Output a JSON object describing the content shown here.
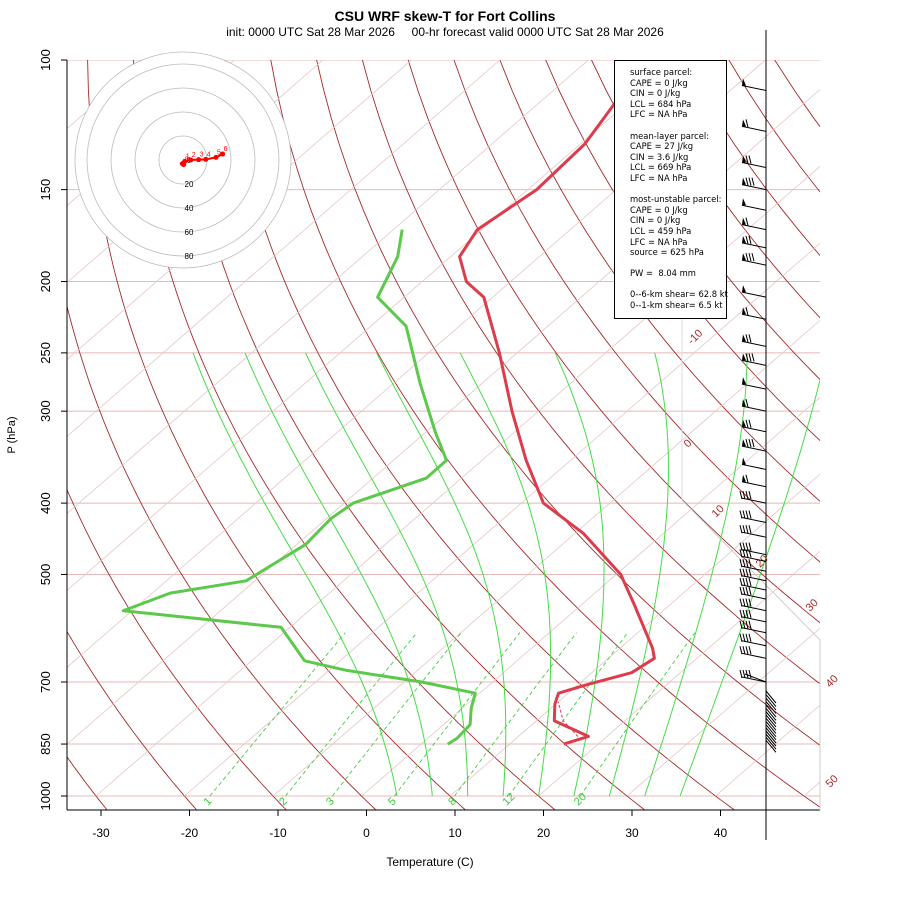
{
  "title": "CSU WRF skew-T for Fort Collins",
  "subtitle": "init: 0000 UTC Sat 28 Mar 2026     00-hr forecast valid 0000 UTC Sat 28 Mar 2026",
  "chart_data": {
    "type": "line",
    "title": "CSU WRF skew-T for Fort Collins",
    "xlabel": "Temperature (C)",
    "ylabel": "P (hPa)",
    "x_ticks": [
      "-30",
      "-20",
      "-10",
      "0",
      "10",
      "20",
      "30",
      "40"
    ],
    "y_ticks": [
      "100",
      "150",
      "200",
      "250",
      "300",
      "400",
      "500",
      "700",
      "850",
      "1000"
    ],
    "isotherm_labels": [
      "-10",
      "0",
      "10",
      "20",
      "30",
      "40",
      "50"
    ],
    "mixing_ratio_labels": [
      "1",
      "2",
      "3",
      "5",
      "8",
      "12",
      "20"
    ],
    "series": [
      {
        "name": "temperature",
        "color": "#dc3c4c",
        "points": [
          [
            16.1,
            850
          ],
          [
            17.9,
            830
          ],
          [
            12.0,
            790
          ],
          [
            9.9,
            750
          ],
          [
            8.9,
            725
          ],
          [
            11.1,
            705
          ],
          [
            14.5,
            680
          ],
          [
            15.2,
            650
          ],
          [
            13.7,
            630
          ],
          [
            6.0,
            550
          ],
          [
            0.5,
            500
          ],
          [
            -9.0,
            440
          ],
          [
            -17.5,
            400
          ],
          [
            -25.0,
            350
          ],
          [
            -33.0,
            300
          ],
          [
            -42.0,
            250
          ],
          [
            -51.0,
            210
          ],
          [
            -55.0,
            200
          ],
          [
            -59.0,
            185
          ],
          [
            -60.5,
            170
          ],
          [
            -59.0,
            150
          ],
          [
            -59.5,
            130
          ],
          [
            -62.0,
            110
          ]
        ]
      },
      {
        "name": "dewpoint",
        "color": "#5cc84c",
        "points": [
          [
            3.0,
            850
          ],
          [
            3.3,
            835
          ],
          [
            3.0,
            800
          ],
          [
            1.0,
            760
          ],
          [
            -0.5,
            725
          ],
          [
            -8.0,
            700
          ],
          [
            -18.0,
            675
          ],
          [
            -24.0,
            655
          ],
          [
            -31.0,
            590
          ],
          [
            -51.0,
            560
          ],
          [
            -48.0,
            530
          ],
          [
            -41.0,
            510
          ],
          [
            -39.0,
            455
          ],
          [
            -39.5,
            420
          ],
          [
            -39.0,
            400
          ],
          [
            -34.0,
            370
          ],
          [
            -34.0,
            350
          ],
          [
            -39.0,
            320
          ],
          [
            -47.0,
            275
          ],
          [
            -56.0,
            230
          ],
          [
            -63.0,
            210
          ],
          [
            -66.0,
            185
          ],
          [
            -69.0,
            170
          ]
        ]
      }
    ],
    "hodograph": {
      "ring_labels": [
        "0",
        "20",
        "40",
        "60",
        "80"
      ],
      "point_labels": [
        "0",
        "1",
        "2",
        "3",
        "4",
        "5",
        "6"
      ],
      "points": [
        [
          -0.5,
          5.5
        ],
        [
          0.5,
          7.0
        ],
        [
          1.5,
          2.0
        ],
        [
          6.5,
          0.0
        ],
        [
          13.0,
          -0.5
        ],
        [
          19.0,
          -1.0
        ],
        [
          27.5,
          -4.0
        ],
        [
          33.0,
          -9.0
        ]
      ]
    },
    "wind_barb_pressures": [
      110,
      125,
      140,
      150,
      160,
      170,
      180,
      190,
      210,
      225,
      245,
      260,
      280,
      300,
      320,
      340,
      360,
      380,
      400,
      425,
      445,
      470,
      480,
      495,
      510,
      525,
      540,
      560,
      580,
      600,
      625,
      650,
      700
    ]
  },
  "info": {
    "surface": [
      "surface parcel:",
      "CAPE = 0 J/kg",
      "CIN = 0 J/kg",
      "LCL = 684 hPa",
      "LFC = NA hPa"
    ],
    "mean_layer": [
      "mean-layer parcel:",
      "CAPE = 27 J/kg",
      "CIN = 3.6 J/kg",
      "LCL = 669 hPa",
      "LFC = NA hPa"
    ],
    "most_unstable": [
      "most-unstable parcel:",
      "CAPE = 0 J/kg",
      "CIN = 0 J/kg",
      "LCL = 459 hPa",
      "LFC = NA hPa",
      "source = 625 hPa"
    ],
    "pw": "PW =  8.04 mm",
    "shear": [
      "0--6-km shear= 62.8 kt",
      "0--1-km shear= 6.5 kt"
    ]
  }
}
